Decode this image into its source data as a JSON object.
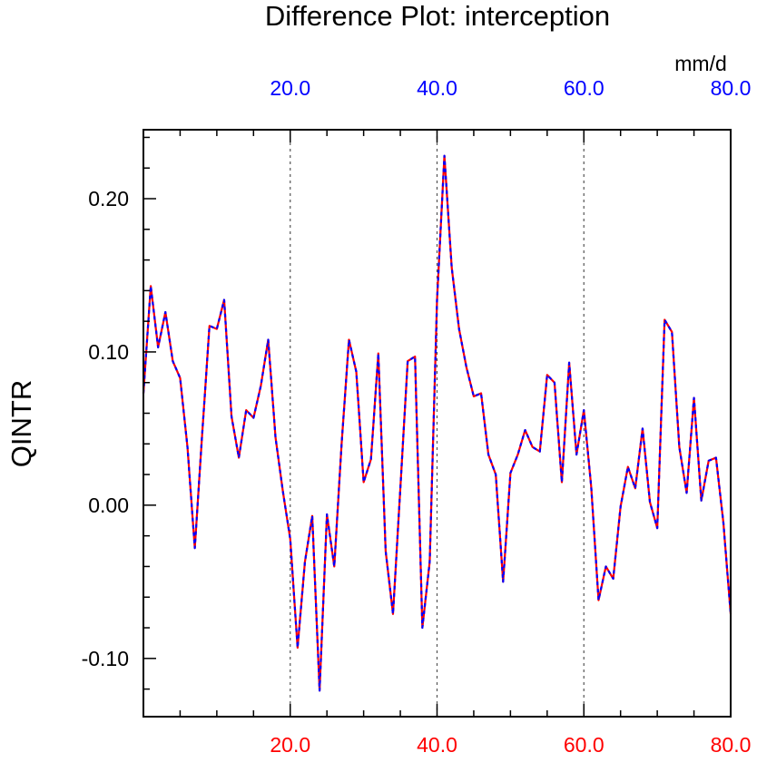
{
  "chart_data": {
    "type": "line",
    "title": "Difference Plot: interception",
    "units": "mm/d",
    "ylabel": "QINTR",
    "xlim": [
      0,
      80
    ],
    "ylim": [
      -0.138,
      0.245
    ],
    "x_major_ticks": [
      20,
      40,
      60,
      80
    ],
    "x_tick_labels": [
      "20.0",
      "40.0",
      "60.0",
      "80.0"
    ],
    "x_minor_step": 5,
    "y_major_ticks": [
      -0.1,
      0.0,
      0.1,
      0.2
    ],
    "y_tick_labels": [
      "-0.10",
      "0.00",
      "0.10",
      "0.20"
    ],
    "y_minor_step": 0.02,
    "grid_x_dashed": [
      20,
      40,
      60
    ],
    "top_tick_color": "#0000ff",
    "bottom_tick_color": "#ff0000",
    "series": [
      {
        "line_color": "#ff0000",
        "overlay_color": "#0000ff",
        "x": [
          0,
          1,
          2,
          3,
          4,
          5,
          6,
          7,
          8,
          9,
          10,
          11,
          12,
          13,
          14,
          15,
          16,
          17,
          18,
          19,
          20,
          21,
          22,
          23,
          24,
          25,
          26,
          27,
          28,
          29,
          30,
          31,
          32,
          33,
          34,
          35,
          36,
          37,
          38,
          39,
          40,
          41,
          42,
          43,
          44,
          45,
          46,
          47,
          48,
          49,
          50,
          51,
          52,
          53,
          54,
          55,
          56,
          57,
          58,
          59,
          60,
          61,
          62,
          63,
          64,
          65,
          66,
          67,
          68,
          69,
          70,
          71,
          72,
          73,
          74,
          75,
          76,
          77,
          78,
          79,
          80
        ],
        "values": [
          0.073,
          0.143,
          0.103,
          0.126,
          0.094,
          0.083,
          0.038,
          -0.028,
          0.046,
          0.117,
          0.115,
          0.134,
          0.058,
          0.031,
          0.062,
          0.057,
          0.078,
          0.108,
          0.044,
          0.009,
          -0.022,
          -0.093,
          -0.037,
          -0.007,
          -0.121,
          -0.006,
          -0.04,
          0.04,
          0.108,
          0.087,
          0.015,
          0.03,
          0.099,
          -0.03,
          -0.071,
          0.011,
          0.094,
          0.097,
          -0.08,
          -0.037,
          0.134,
          0.228,
          0.155,
          0.115,
          0.09,
          0.071,
          0.073,
          0.033,
          0.02,
          -0.05,
          0.021,
          0.033,
          0.049,
          0.038,
          0.035,
          0.085,
          0.08,
          0.015,
          0.093,
          0.033,
          0.062,
          0.012,
          -0.062,
          -0.04,
          -0.048,
          -0.001,
          0.025,
          0.011,
          0.05,
          0.002,
          -0.015,
          0.121,
          0.113,
          0.038,
          0.008,
          0.07,
          0.003,
          0.029,
          0.031,
          -0.011,
          -0.071
        ]
      }
    ]
  }
}
